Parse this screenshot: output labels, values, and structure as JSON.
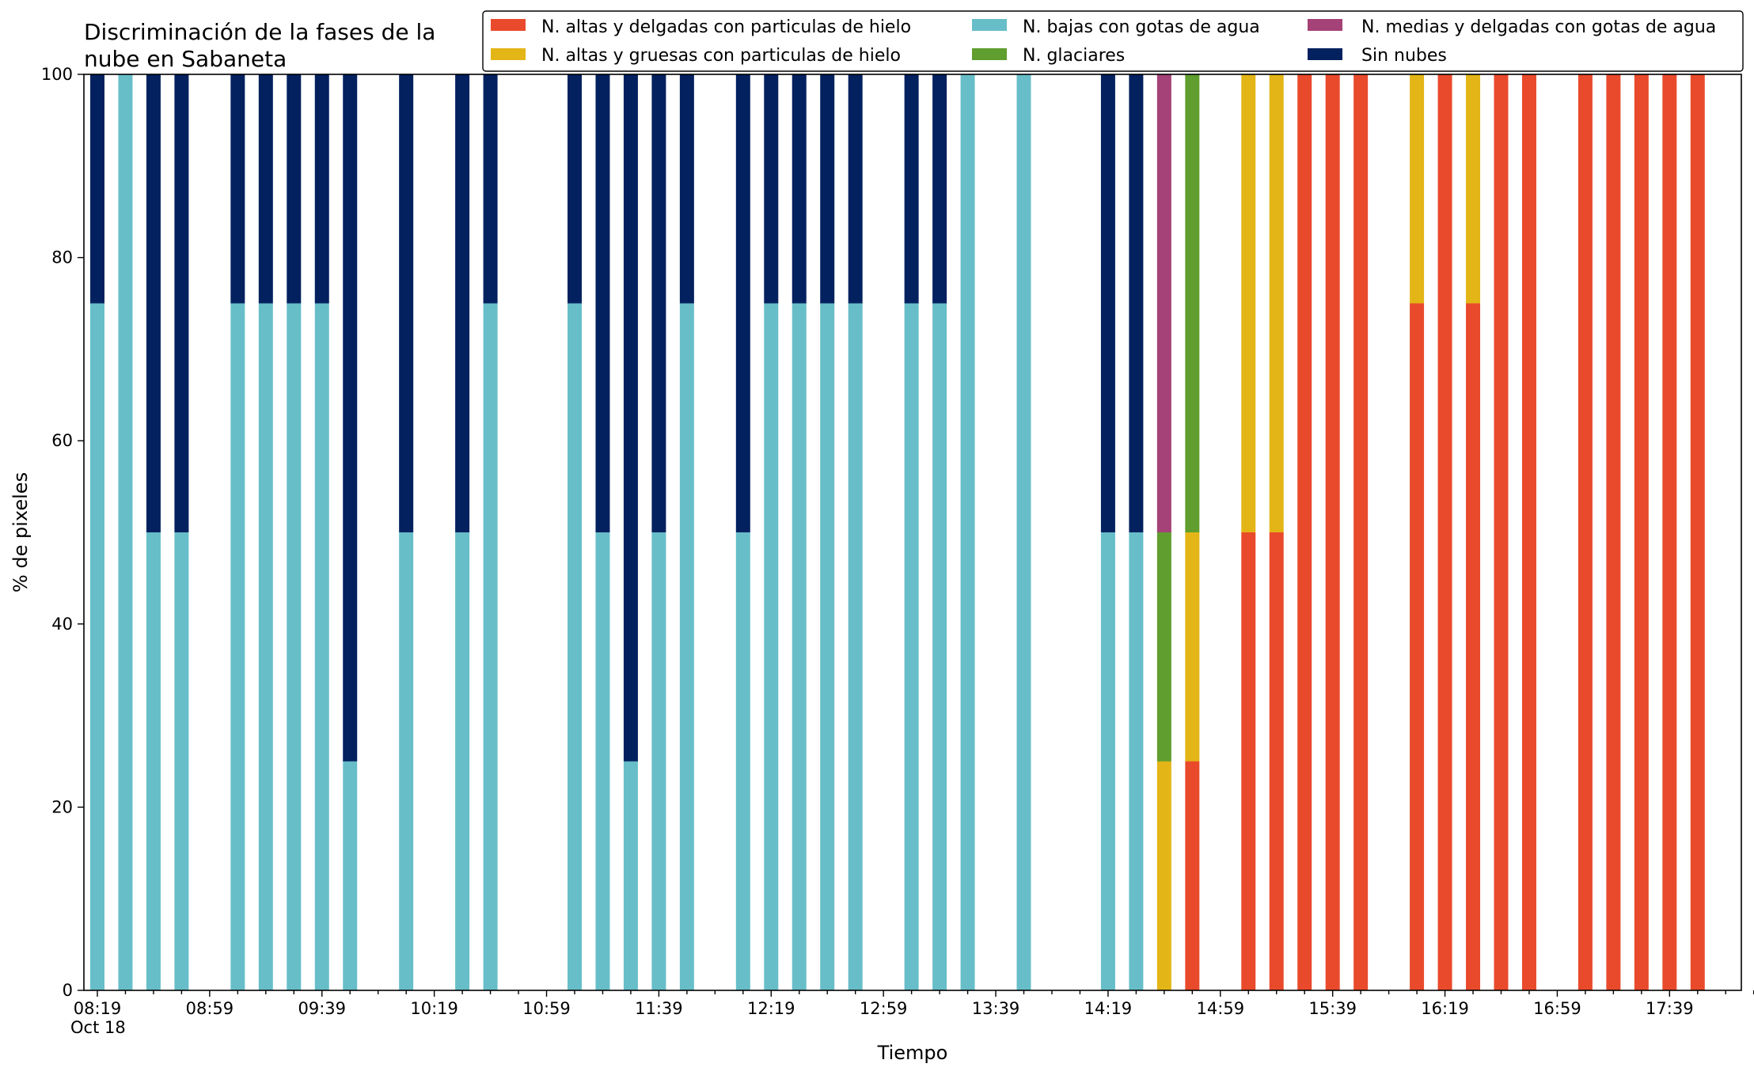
{
  "chart_data": {
    "type": "bar",
    "stacked": true,
    "title_lines": [
      "Discriminación de la fases de la",
      "nube en Sabaneta"
    ],
    "xlabel": "Tiempo",
    "ylabel": "% de pixeles",
    "ylim": [
      0,
      100
    ],
    "yticks": [
      0,
      20,
      40,
      60,
      80,
      100
    ],
    "x_interval_minutes": 10,
    "x_start": "08:19",
    "x_end": "18:09",
    "x_tick_labels": [
      "08:19",
      "08:59",
      "09:39",
      "10:19",
      "10:59",
      "11:39",
      "12:19",
      "12:59",
      "13:39",
      "14:19",
      "14:59",
      "15:39",
      "16:19",
      "16:59",
      "17:39"
    ],
    "x_date_label": "Oct 18",
    "grid": false,
    "legend_position": "top-right",
    "legend_columns": 3,
    "series": [
      {
        "name": "N. altas y delgadas con particulas de hielo",
        "color": "#e94a2c"
      },
      {
        "name": "N. altas y gruesas con particulas de hielo",
        "color": "#e3b517"
      },
      {
        "name": "N. bajas con gotas de agua",
        "color": "#67bec9"
      },
      {
        "name": "N. glaciares",
        "color": "#5f9e2f"
      },
      {
        "name": "N. medias y delgadas con gotas de agua",
        "color": "#a54277"
      },
      {
        "name": "Sin nubes",
        "color": "#03215f"
      }
    ],
    "bars": [
      {
        "time": "08:19",
        "values": [
          0,
          0,
          75,
          0,
          0,
          25
        ]
      },
      {
        "time": "08:29",
        "values": [
          0,
          0,
          100,
          0,
          0,
          0
        ]
      },
      {
        "time": "08:39",
        "values": [
          0,
          0,
          50,
          0,
          0,
          50
        ]
      },
      {
        "time": "08:49",
        "values": [
          0,
          0,
          50,
          0,
          0,
          50
        ]
      },
      {
        "time": "09:09",
        "values": [
          0,
          0,
          75,
          0,
          0,
          25
        ]
      },
      {
        "time": "09:19",
        "values": [
          0,
          0,
          75,
          0,
          0,
          25
        ]
      },
      {
        "time": "09:29",
        "values": [
          0,
          0,
          75,
          0,
          0,
          25
        ]
      },
      {
        "time": "09:39",
        "values": [
          0,
          0,
          75,
          0,
          0,
          25
        ]
      },
      {
        "time": "09:49",
        "values": [
          0,
          0,
          25,
          0,
          0,
          75
        ]
      },
      {
        "time": "10:09",
        "values": [
          0,
          0,
          50,
          0,
          0,
          50
        ]
      },
      {
        "time": "10:29",
        "values": [
          0,
          0,
          50,
          0,
          0,
          50
        ]
      },
      {
        "time": "10:39",
        "values": [
          0,
          0,
          75,
          0,
          0,
          25
        ]
      },
      {
        "time": "11:09",
        "values": [
          0,
          0,
          75,
          0,
          0,
          25
        ]
      },
      {
        "time": "11:19",
        "values": [
          0,
          0,
          50,
          0,
          0,
          50
        ]
      },
      {
        "time": "11:29",
        "values": [
          0,
          0,
          25,
          0,
          0,
          75
        ]
      },
      {
        "time": "11:39",
        "values": [
          0,
          0,
          50,
          0,
          0,
          50
        ]
      },
      {
        "time": "11:49",
        "values": [
          0,
          0,
          75,
          0,
          0,
          25
        ]
      },
      {
        "time": "12:09",
        "values": [
          0,
          0,
          50,
          0,
          0,
          50
        ]
      },
      {
        "time": "12:19",
        "values": [
          0,
          0,
          75,
          0,
          0,
          25
        ]
      },
      {
        "time": "12:29",
        "values": [
          0,
          0,
          75,
          0,
          0,
          25
        ]
      },
      {
        "time": "12:39",
        "values": [
          0,
          0,
          75,
          0,
          0,
          25
        ]
      },
      {
        "time": "12:49",
        "values": [
          0,
          0,
          75,
          0,
          0,
          25
        ]
      },
      {
        "time": "13:09",
        "values": [
          0,
          0,
          75,
          0,
          0,
          25
        ]
      },
      {
        "time": "13:19",
        "values": [
          0,
          0,
          75,
          0,
          0,
          25
        ]
      },
      {
        "time": "13:29",
        "values": [
          0,
          0,
          100,
          0,
          0,
          0
        ]
      },
      {
        "time": "13:49",
        "values": [
          0,
          0,
          100,
          0,
          0,
          0
        ]
      },
      {
        "time": "14:19",
        "values": [
          0,
          0,
          50,
          0,
          0,
          50
        ]
      },
      {
        "time": "14:29",
        "values": [
          0,
          0,
          50,
          0,
          0,
          50
        ]
      },
      {
        "time": "14:39",
        "values": [
          0,
          25,
          0,
          25,
          50,
          0
        ]
      },
      {
        "time": "14:49",
        "values": [
          25,
          25,
          0,
          50,
          0,
          0
        ]
      },
      {
        "time": "15:09",
        "values": [
          50,
          50,
          0,
          0,
          0,
          0
        ]
      },
      {
        "time": "15:19",
        "values": [
          50,
          50,
          0,
          0,
          0,
          0
        ]
      },
      {
        "time": "15:29",
        "values": [
          100,
          0,
          0,
          0,
          0,
          0
        ]
      },
      {
        "time": "15:39",
        "values": [
          100,
          0,
          0,
          0,
          0,
          0
        ]
      },
      {
        "time": "15:49",
        "values": [
          100,
          0,
          0,
          0,
          0,
          0
        ]
      },
      {
        "time": "16:09",
        "values": [
          75,
          25,
          0,
          0,
          0,
          0
        ]
      },
      {
        "time": "16:19",
        "values": [
          100,
          0,
          0,
          0,
          0,
          0
        ]
      },
      {
        "time": "16:29",
        "values": [
          75,
          25,
          0,
          0,
          0,
          0
        ]
      },
      {
        "time": "16:39",
        "values": [
          100,
          0,
          0,
          0,
          0,
          0
        ]
      },
      {
        "time": "16:49",
        "values": [
          100,
          0,
          0,
          0,
          0,
          0
        ]
      },
      {
        "time": "17:09",
        "values": [
          100,
          0,
          0,
          0,
          0,
          0
        ]
      },
      {
        "time": "17:19",
        "values": [
          100,
          0,
          0,
          0,
          0,
          0
        ]
      },
      {
        "time": "17:29",
        "values": [
          100,
          0,
          0,
          0,
          0,
          0
        ]
      },
      {
        "time": "17:39",
        "values": [
          100,
          0,
          0,
          0,
          0,
          0
        ]
      },
      {
        "time": "17:49",
        "values": [
          100,
          0,
          0,
          0,
          0,
          0
        ]
      }
    ]
  }
}
